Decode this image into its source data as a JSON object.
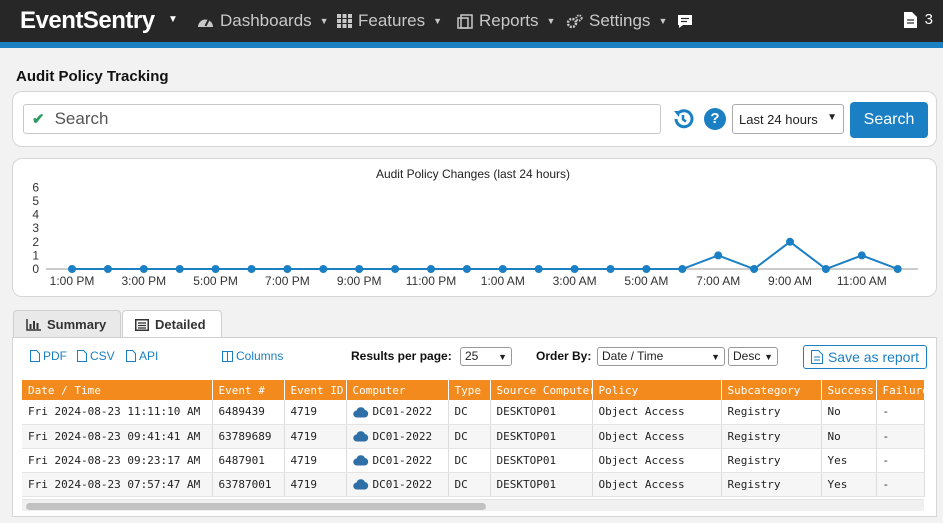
{
  "navbar": {
    "brand": "EventSentry",
    "items": [
      {
        "label": "Dashboards",
        "icon": "dashboard-icon"
      },
      {
        "label": "Features",
        "icon": "grid-icon"
      },
      {
        "label": "Reports",
        "icon": "reports-icon"
      },
      {
        "label": "Settings",
        "icon": "gears-icon"
      }
    ],
    "chat_icon": "chat-icon",
    "doc_count": "3"
  },
  "page": {
    "title": "Audit Policy Tracking"
  },
  "search": {
    "placeholder": "Search",
    "range": "Last 24 hours",
    "button": "Search"
  },
  "chart_data": {
    "type": "line",
    "title": "Audit Policy Changes (last 24 hours)",
    "x": [
      "1:00 PM",
      "2:00 PM",
      "3:00 PM",
      "4:00 PM",
      "5:00 PM",
      "6:00 PM",
      "7:00 PM",
      "8:00 PM",
      "9:00 PM",
      "10:00 PM",
      "11:00 PM",
      "12:00 AM",
      "1:00 AM",
      "2:00 AM",
      "3:00 AM",
      "4:00 AM",
      "5:00 AM",
      "6:00 AM",
      "7:00 AM",
      "8:00 AM",
      "9:00 AM",
      "10:00 AM",
      "11:00 AM",
      "12:00 PM"
    ],
    "tick_labels": [
      "1:00 PM",
      "3:00 PM",
      "5:00 PM",
      "7:00 PM",
      "9:00 PM",
      "11:00 PM",
      "1:00 AM",
      "3:00 AM",
      "5:00 AM",
      "7:00 AM",
      "9:00 AM",
      "11:00 AM"
    ],
    "values": [
      0,
      0,
      0,
      0,
      0,
      0,
      0,
      0,
      0,
      0,
      0,
      0,
      0,
      0,
      0,
      0,
      0,
      0,
      1,
      0,
      2,
      0,
      1,
      0
    ],
    "ylim": [
      0,
      6
    ],
    "y_ticks": [
      "0",
      "1",
      "2",
      "3",
      "4",
      "5",
      "6"
    ],
    "color": "#1b7fc4",
    "grid": false,
    "legend": "none"
  },
  "tabs": [
    {
      "label": "Summary",
      "icon": "bar-chart-icon"
    },
    {
      "label": "Detailed",
      "icon": "list-icon"
    }
  ],
  "toolbar": {
    "pdf": "PDF",
    "csv": "CSV",
    "api": "API",
    "columns": "Columns",
    "results_label": "Results per page:",
    "results_value": "25",
    "order_label": "Order By:",
    "order_value": "Date / Time",
    "order_dir": "Desc",
    "save_report": "Save as report"
  },
  "table": {
    "headers": [
      "Date / Time",
      "Event #",
      "Event ID",
      "Computer",
      "Type",
      "Source Computer",
      "Policy",
      "Subcategory",
      "Success",
      "Failure"
    ],
    "rows": [
      [
        "Fri 2024-08-23 11:11:10 AM",
        "6489439",
        "4719",
        "DC01-2022",
        "DC",
        "DESKTOP01",
        "Object Access",
        "Registry",
        "No",
        "-"
      ],
      [
        "Fri 2024-08-23 09:41:41 AM",
        "63789689",
        "4719",
        "DC01-2022",
        "DC",
        "DESKTOP01",
        "Object Access",
        "Registry",
        "No",
        "-"
      ],
      [
        "Fri 2024-08-23 09:23:17 AM",
        "6487901",
        "4719",
        "DC01-2022",
        "DC",
        "DESKTOP01",
        "Object Access",
        "Registry",
        "Yes",
        "-"
      ],
      [
        "Fri 2024-08-23 07:57:47 AM",
        "63787001",
        "4719",
        "DC01-2022",
        "DC",
        "DESKTOP01",
        "Object Access",
        "Registry",
        "Yes",
        "-"
      ]
    ]
  }
}
